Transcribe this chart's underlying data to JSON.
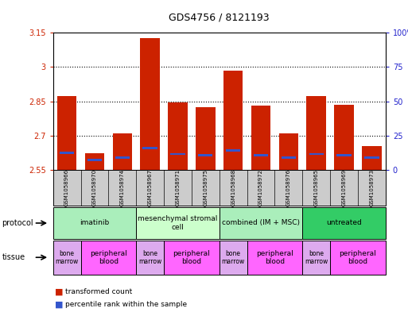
{
  "title": "GDS4756 / 8121193",
  "samples": [
    "GSM1058966",
    "GSM1058970",
    "GSM1058974",
    "GSM1058967",
    "GSM1058971",
    "GSM1058975",
    "GSM1058968",
    "GSM1058972",
    "GSM1058976",
    "GSM1058965",
    "GSM1058969",
    "GSM1058973"
  ],
  "bar_heights": [
    2.875,
    2.625,
    2.71,
    3.125,
    2.845,
    2.825,
    2.985,
    2.83,
    2.71,
    2.875,
    2.835,
    2.655
  ],
  "blue_values": [
    2.625,
    2.595,
    2.605,
    2.645,
    2.62,
    2.615,
    2.635,
    2.615,
    2.605,
    2.62,
    2.615,
    2.605
  ],
  "bar_bottom": 2.55,
  "ylim_left": [
    2.55,
    3.15
  ],
  "ylim_right": [
    0,
    100
  ],
  "yticks_left": [
    2.55,
    2.7,
    2.85,
    3.0,
    3.15
  ],
  "ytick_labels_left": [
    "2.55",
    "2.7",
    "2.85",
    "3",
    "3.15"
  ],
  "yticks_right": [
    0,
    25,
    50,
    75,
    100
  ],
  "ytick_labels_right": [
    "0",
    "25",
    "50",
    "75",
    "100%"
  ],
  "bar_color": "#cc2200",
  "blue_color": "#3355cc",
  "grid_dotted_at": [
    2.7,
    2.85,
    3.0
  ],
  "protocols": [
    {
      "label": "imatinib",
      "span": [
        0,
        3
      ],
      "color": "#aaeebb"
    },
    {
      "label": "mesenchymal stromal\ncell",
      "span": [
        3,
        6
      ],
      "color": "#ccffcc"
    },
    {
      "label": "combined (IM + MSC)",
      "span": [
        6,
        9
      ],
      "color": "#aaeebb"
    },
    {
      "label": "untreated",
      "span": [
        9,
        12
      ],
      "color": "#33cc66"
    }
  ],
  "tissues": [
    {
      "label": "bone\nmarrow",
      "span": [
        0,
        1
      ],
      "color": "#ddaaee"
    },
    {
      "label": "peripheral\nblood",
      "span": [
        1,
        3
      ],
      "color": "#ff66ff"
    },
    {
      "label": "bone\nmarrow",
      "span": [
        3,
        4
      ],
      "color": "#ddaaee"
    },
    {
      "label": "peripheral\nblood",
      "span": [
        4,
        6
      ],
      "color": "#ff66ff"
    },
    {
      "label": "bone\nmarrow",
      "span": [
        6,
        7
      ],
      "color": "#ddaaee"
    },
    {
      "label": "peripheral\nblood",
      "span": [
        7,
        9
      ],
      "color": "#ff66ff"
    },
    {
      "label": "bone\nmarrow",
      "span": [
        9,
        10
      ],
      "color": "#ddaaee"
    },
    {
      "label": "peripheral\nblood",
      "span": [
        10,
        12
      ],
      "color": "#ff66ff"
    }
  ],
  "legend_red": "transformed count",
  "legend_blue": "percentile rank within the sample",
  "protocol_label": "protocol",
  "tissue_label": "tissue",
  "sample_bg_color": "#cccccc",
  "plot_bg_color": "#ffffff"
}
